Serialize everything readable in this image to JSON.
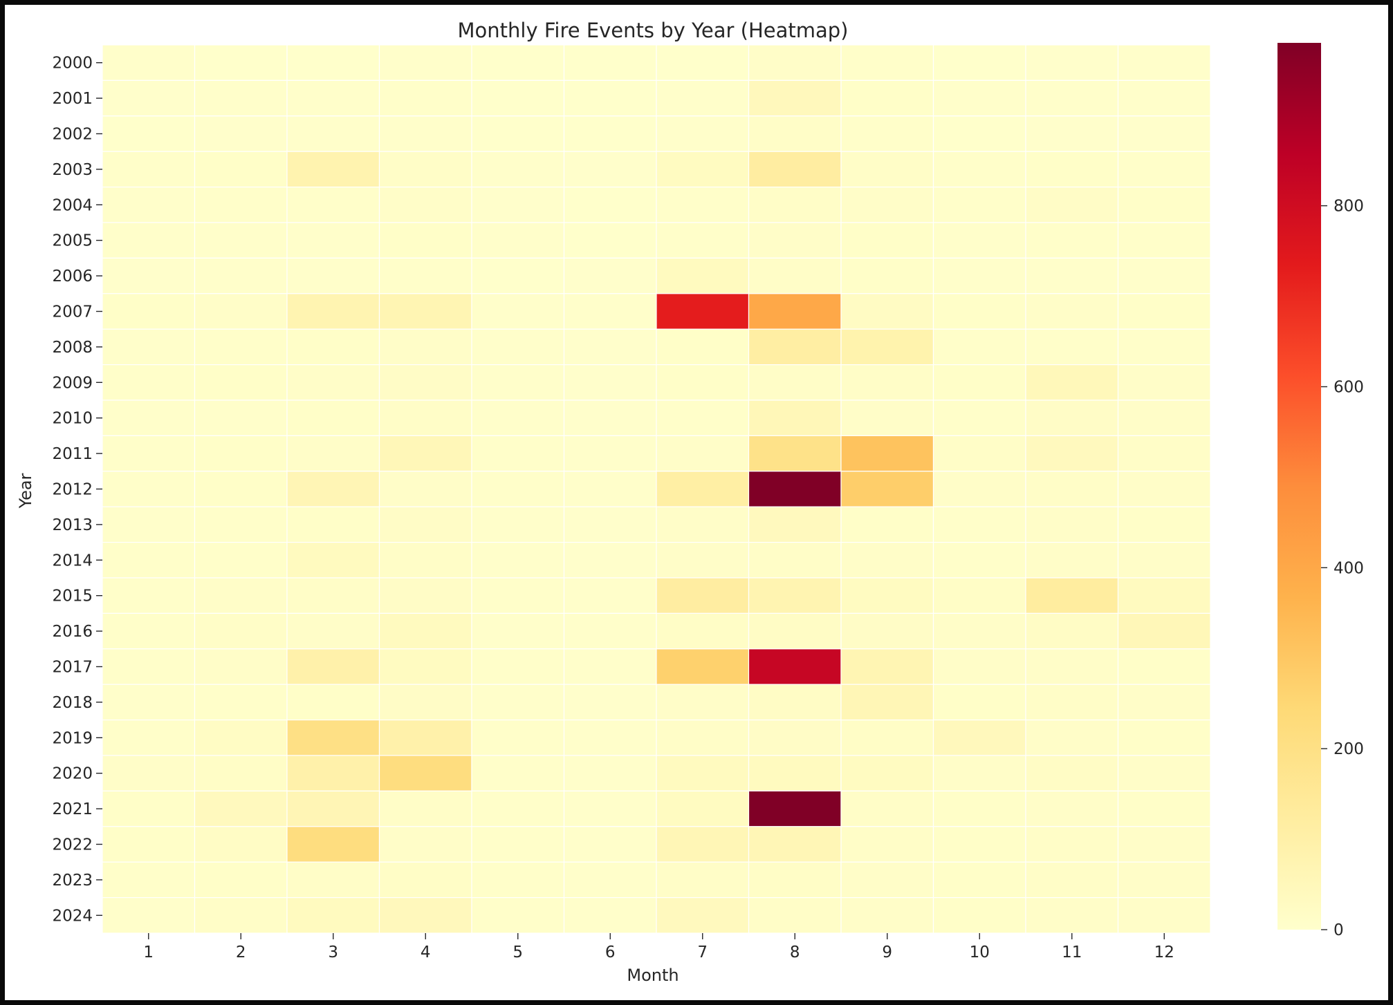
{
  "chart_data": {
    "type": "heatmap",
    "title": "Monthly Fire Events by Year (Heatmap)",
    "xlabel": "Month",
    "ylabel": "Year",
    "x": [
      "1",
      "2",
      "3",
      "4",
      "5",
      "6",
      "7",
      "8",
      "9",
      "10",
      "11",
      "12"
    ],
    "y": [
      "2000",
      "2001",
      "2002",
      "2003",
      "2004",
      "2005",
      "2006",
      "2007",
      "2008",
      "2009",
      "2010",
      "2011",
      "2012",
      "2013",
      "2014",
      "2015",
      "2016",
      "2017",
      "2018",
      "2019",
      "2020",
      "2021",
      "2022",
      "2023",
      "2024"
    ],
    "values": [
      [
        5,
        3,
        3,
        5,
        2,
        2,
        3,
        12,
        8,
        3,
        4,
        5
      ],
      [
        4,
        6,
        5,
        8,
        3,
        3,
        6,
        45,
        10,
        6,
        6,
        5
      ],
      [
        3,
        4,
        5,
        6,
        3,
        2,
        5,
        14,
        8,
        3,
        4,
        4
      ],
      [
        8,
        10,
        80,
        15,
        5,
        4,
        30,
        120,
        15,
        8,
        10,
        8
      ],
      [
        6,
        8,
        8,
        12,
        4,
        3,
        8,
        15,
        12,
        8,
        18,
        10
      ],
      [
        5,
        6,
        6,
        10,
        6,
        3,
        8,
        12,
        10,
        6,
        8,
        7
      ],
      [
        4,
        5,
        5,
        8,
        3,
        4,
        35,
        14,
        10,
        6,
        6,
        5
      ],
      [
        10,
        12,
        75,
        70,
        6,
        5,
        730,
        400,
        25,
        10,
        12,
        10
      ],
      [
        6,
        8,
        10,
        12,
        5,
        4,
        10,
        115,
        85,
        8,
        8,
        8
      ],
      [
        8,
        10,
        12,
        18,
        6,
        4,
        10,
        15,
        15,
        10,
        50,
        12
      ],
      [
        5,
        6,
        10,
        14,
        5,
        4,
        8,
        55,
        12,
        8,
        18,
        12
      ],
      [
        8,
        10,
        12,
        55,
        8,
        5,
        12,
        190,
        315,
        15,
        40,
        15
      ],
      [
        8,
        10,
        65,
        12,
        8,
        5,
        110,
        980,
        280,
        12,
        15,
        12
      ],
      [
        6,
        8,
        10,
        18,
        6,
        4,
        12,
        40,
        10,
        8,
        12,
        10
      ],
      [
        7,
        8,
        35,
        15,
        6,
        4,
        12,
        15,
        12,
        8,
        12,
        12
      ],
      [
        8,
        12,
        14,
        18,
        8,
        5,
        120,
        75,
        30,
        16,
        125,
        35
      ],
      [
        8,
        14,
        12,
        35,
        6,
        5,
        16,
        20,
        18,
        12,
        20,
        55
      ],
      [
        8,
        12,
        95,
        30,
        7,
        5,
        270,
        830,
        70,
        12,
        12,
        10
      ],
      [
        6,
        8,
        10,
        18,
        6,
        4,
        12,
        20,
        60,
        10,
        15,
        12
      ],
      [
        8,
        22,
        200,
        95,
        8,
        6,
        14,
        18,
        16,
        45,
        12,
        10
      ],
      [
        12,
        16,
        95,
        220,
        8,
        6,
        35,
        35,
        30,
        12,
        20,
        12
      ],
      [
        10,
        40,
        65,
        14,
        8,
        6,
        30,
        980,
        14,
        10,
        12,
        10
      ],
      [
        10,
        20,
        220,
        12,
        8,
        6,
        60,
        60,
        14,
        10,
        14,
        12
      ],
      [
        8,
        10,
        14,
        16,
        7,
        5,
        14,
        16,
        12,
        10,
        14,
        12
      ],
      [
        6,
        14,
        35,
        45,
        8,
        5,
        40,
        14,
        12,
        10,
        12,
        12
      ]
    ],
    "colorbar": {
      "colormap": "YlOrRd",
      "min": 0,
      "max": 980,
      "ticks": [
        0,
        200,
        400,
        600,
        800
      ]
    },
    "grid": false,
    "cell_borders": true
  }
}
